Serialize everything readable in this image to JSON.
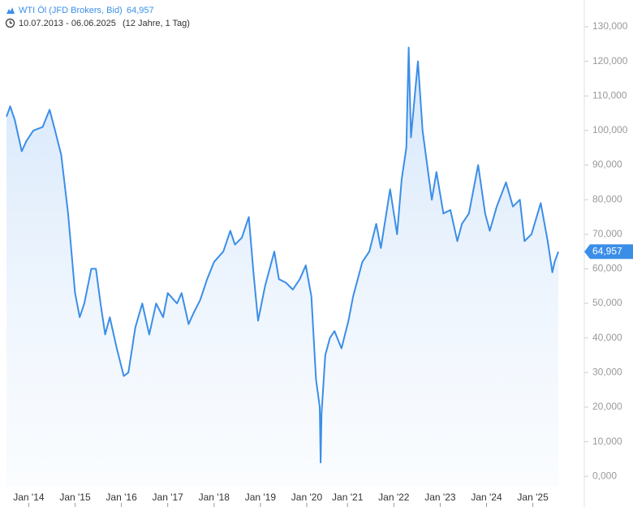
{
  "chart_data": {
    "type": "line",
    "title": "WTI Öl (JFD Brokers, Bid)",
    "period": "10.07.2013 - 06.06.2025",
    "span": "(12 Jahre, 1 Tag)",
    "last": {
      "value": 64.957,
      "label": "64,957"
    },
    "color": "#3b8ee8",
    "xlim": [
      2013.52,
      2025.43
    ],
    "xticks": [
      {
        "value": 2014,
        "label": "Jan '14"
      },
      {
        "value": 2015,
        "label": "Jan '15"
      },
      {
        "value": 2016,
        "label": "Jan '16"
      },
      {
        "value": 2017,
        "label": "Jan '17"
      },
      {
        "value": 2018,
        "label": "Jan '18"
      },
      {
        "value": 2019,
        "label": "Jan '19"
      },
      {
        "value": 2020,
        "label": "Jan '20"
      },
      {
        "value": 2020.88,
        "label": "Jan '21"
      },
      {
        "value": 2021.88,
        "label": "Jan '22"
      },
      {
        "value": 2022.88,
        "label": "Jan '23"
      },
      {
        "value": 2023.88,
        "label": "Jan '24"
      },
      {
        "value": 2024.88,
        "label": "Jan '25"
      }
    ],
    "ylim": [
      -3,
      130
    ],
    "yticks": [
      {
        "value": 0,
        "label": "0,000"
      },
      {
        "value": 10,
        "label": "10,000"
      },
      {
        "value": 20,
        "label": "20,000"
      },
      {
        "value": 30,
        "label": "30,000"
      },
      {
        "value": 40,
        "label": "40,000"
      },
      {
        "value": 50,
        "label": "50,000"
      },
      {
        "value": 60,
        "label": "60,000"
      },
      {
        "value": 70,
        "label": "70,000"
      },
      {
        "value": 80,
        "label": "80,000"
      },
      {
        "value": 90,
        "label": "90,000"
      },
      {
        "value": 100,
        "label": "100,000"
      },
      {
        "value": 110,
        "label": "110,000"
      },
      {
        "value": 120,
        "label": "120,000"
      },
      {
        "value": 130,
        "label": "130,000"
      }
    ],
    "series": [
      {
        "name": "WTI Öl",
        "x": [
          2013.52,
          2013.6,
          2013.7,
          2013.85,
          2013.95,
          2014.1,
          2014.3,
          2014.45,
          2014.55,
          2014.7,
          2014.85,
          2015.0,
          2015.1,
          2015.2,
          2015.35,
          2015.45,
          2015.55,
          2015.65,
          2015.75,
          2015.9,
          2016.05,
          2016.15,
          2016.3,
          2016.45,
          2016.6,
          2016.75,
          2016.9,
          2017.0,
          2017.2,
          2017.3,
          2017.45,
          2017.55,
          2017.7,
          2017.85,
          2018.0,
          2018.2,
          2018.35,
          2018.45,
          2018.6,
          2018.75,
          2018.85,
          2018.95,
          2019.1,
          2019.3,
          2019.4,
          2019.55,
          2019.7,
          2019.85,
          2019.98,
          2020.1,
          2020.2,
          2020.28,
          2020.3,
          2020.32,
          2020.4,
          2020.5,
          2020.6,
          2020.75,
          2020.9,
          2021.0,
          2021.2,
          2021.35,
          2021.5,
          2021.6,
          2021.8,
          2021.95,
          2022.05,
          2022.15,
          2022.2,
          2022.25,
          2022.4,
          2022.5,
          2022.6,
          2022.7,
          2022.8,
          2022.95,
          2023.1,
          2023.25,
          2023.35,
          2023.5,
          2023.7,
          2023.85,
          2023.95,
          2024.1,
          2024.3,
          2024.45,
          2024.6,
          2024.7,
          2024.85,
          2025.05,
          2025.2,
          2025.3,
          2025.35,
          2025.43
        ],
        "values": [
          104,
          107,
          103,
          94,
          97,
          100,
          101,
          106,
          101,
          93,
          76,
          53,
          46,
          50,
          60,
          60,
          50,
          41,
          46,
          37,
          29,
          30,
          43,
          50,
          41,
          50,
          46,
          53,
          50,
          53,
          44,
          47,
          51,
          57,
          62,
          65,
          71,
          67,
          69,
          75,
          59,
          45,
          55,
          65,
          57,
          56,
          54,
          57,
          61,
          52,
          28,
          20,
          4,
          18,
          35,
          40,
          42,
          37,
          45,
          52,
          62,
          65,
          73,
          66,
          83,
          70,
          86,
          95,
          124,
          98,
          120,
          100,
          90,
          80,
          88,
          76,
          77,
          68,
          73,
          76,
          90,
          76,
          71,
          78,
          85,
          78,
          80,
          68,
          70,
          79,
          68,
          59,
          62,
          64.957
        ]
      }
    ]
  }
}
